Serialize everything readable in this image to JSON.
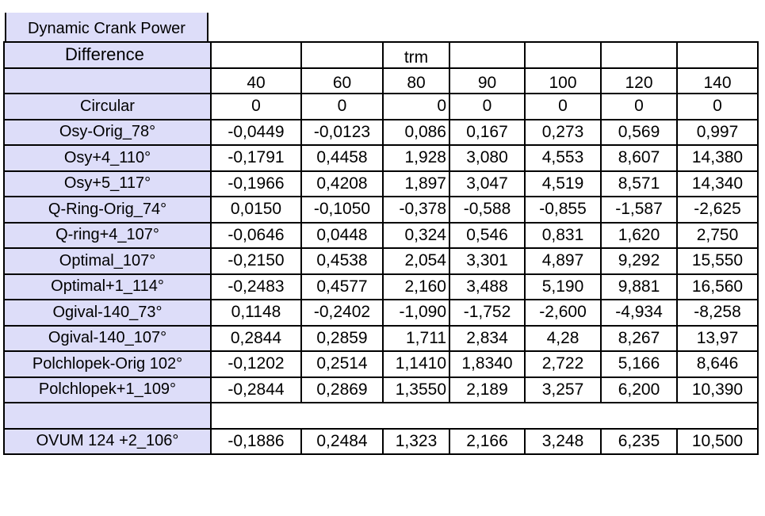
{
  "title_line1": "Dynamic Crank Power",
  "title_line2": "Difference",
  "group_label": "trm",
  "columns": [
    "40",
    "60",
    "80",
    "90",
    "100",
    "120",
    "140"
  ],
  "rows": [
    {
      "label": "Circular",
      "values": [
        "0",
        "0",
        "0",
        "0",
        "0",
        "0",
        "0"
      ]
    },
    {
      "label": "Osy-Orig_78°",
      "values": [
        "-0,0449",
        "-0,0123",
        "0,086",
        "0,167",
        "0,273",
        "0,569",
        "0,997"
      ]
    },
    {
      "label": "Osy+4_110°",
      "values": [
        "-0,1791",
        "0,4458",
        "1,928",
        "3,080",
        "4,553",
        "8,607",
        "14,380"
      ]
    },
    {
      "label": "Osy+5_117°",
      "values": [
        "-0,1966",
        "0,4208",
        "1,897",
        "3,047",
        "4,519",
        "8,571",
        "14,340"
      ]
    },
    {
      "label": "Q-Ring-Orig_74°",
      "values": [
        "0,0150",
        "-0,1050",
        "-0,378",
        "-0,588",
        "-0,855",
        "-1,587",
        "-2,625"
      ]
    },
    {
      "label": "Q-ring+4_107°",
      "values": [
        "-0,0646",
        "0,0448",
        "0,324",
        "0,546",
        "0,831",
        "1,620",
        "2,750"
      ]
    },
    {
      "label": "Optimal_107°",
      "values": [
        "-0,2150",
        "0,4538",
        "2,054",
        "3,301",
        "4,897",
        "9,292",
        "15,550"
      ]
    },
    {
      "label": "Optimal+1_114°",
      "values": [
        "-0,2483",
        "0,4577",
        "2,160",
        "3,488",
        "5,190",
        "9,881",
        "16,560"
      ]
    },
    {
      "label": "Ogival-140_73°",
      "values": [
        "0,1148",
        "-0,2402",
        "-1,090",
        "-1,752",
        "-2,600",
        "-4,934",
        "-8,258"
      ]
    },
    {
      "label": "Ogival-140_107°",
      "values": [
        "0,2844",
        "0,2859",
        "1,711",
        "2,834",
        "4,28",
        "8,267",
        "13,97"
      ]
    },
    {
      "label": "Polchlopek-Orig 102°",
      "values": [
        "-0,1202",
        "0,2514",
        "1,1410",
        "1,8340",
        "2,722",
        "5,166",
        "8,646"
      ]
    },
    {
      "label": "Polchlopek+1_109°",
      "values": [
        "-0,2844",
        "0,2869",
        "1,3550",
        "2,189",
        "3,257",
        "6,200",
        "10,390"
      ]
    },
    {
      "label": "OVUM 124 +2_106°",
      "values": [
        "-0,1886",
        "0,2484",
        "1,323",
        "2,166",
        "3,248",
        "6,235",
        "10,500"
      ]
    }
  ]
}
